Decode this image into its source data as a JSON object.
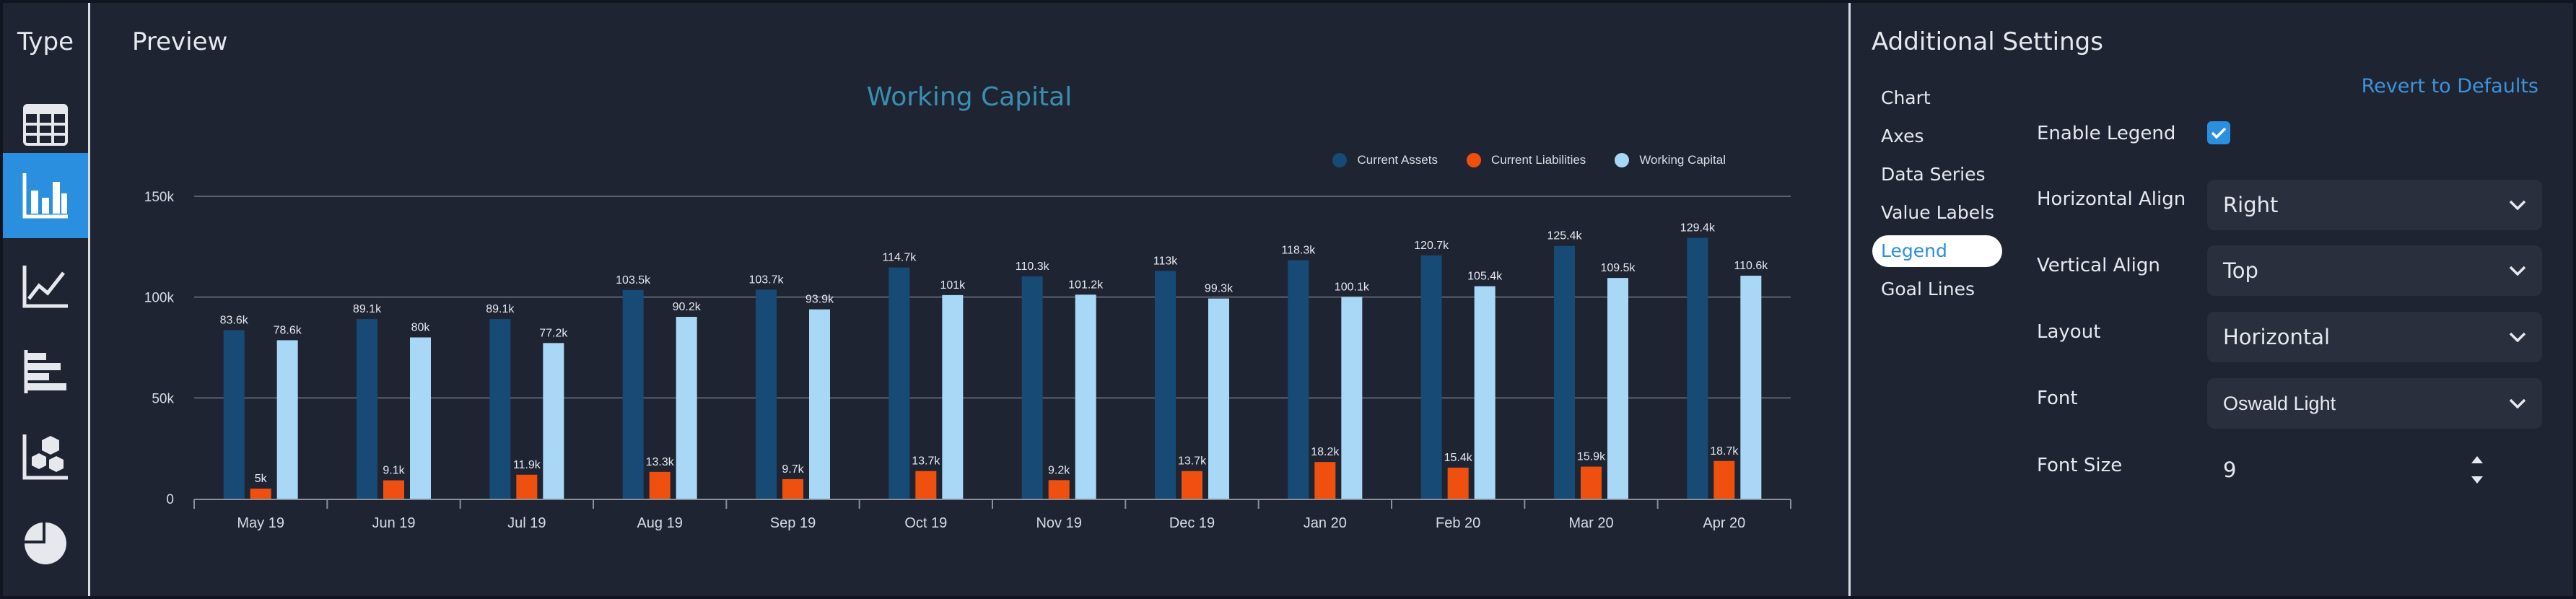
{
  "rail": {
    "title": "Type",
    "buttons": [
      {
        "icon": "table-icon",
        "active": false
      },
      {
        "icon": "bar-chart-icon",
        "active": true
      },
      {
        "icon": "line-chart-icon",
        "active": false
      },
      {
        "icon": "horizontal-bar-icon",
        "active": false
      },
      {
        "icon": "scatter-chart-icon",
        "active": false
      },
      {
        "icon": "pie-chart-icon",
        "active": false
      }
    ]
  },
  "preview": {
    "title": "Preview"
  },
  "chart_data": {
    "type": "bar",
    "title": "Working Capital",
    "xlabel": "",
    "ylabel": "",
    "categories": [
      "May 19",
      "Jun 19",
      "Jul 19",
      "Aug 19",
      "Sep 19",
      "Oct 19",
      "Nov 19",
      "Dec 19",
      "Jan 20",
      "Feb 20",
      "Mar 20",
      "Apr 20"
    ],
    "series": [
      {
        "name": "Current Assets",
        "color": "#174a75",
        "values": [
          83.6,
          89.1,
          89.1,
          103.5,
          103.7,
          114.7,
          110.3,
          113,
          118.3,
          120.7,
          125.4,
          129.4
        ],
        "labels": [
          "83.6k",
          "89.1k",
          "89.1k",
          "103.5k",
          "103.7k",
          "114.7k",
          "110.3k",
          "113k",
          "118.3k",
          "120.7k",
          "125.4k",
          "129.4k"
        ]
      },
      {
        "name": "Current Liabilities",
        "color": "#f0500f",
        "values": [
          5,
          9.1,
          11.9,
          13.3,
          9.7,
          13.7,
          9.2,
          13.7,
          18.2,
          15.4,
          15.9,
          18.7
        ],
        "labels": [
          "5k",
          "9.1k",
          "11.9k",
          "13.3k",
          "9.7k",
          "13.7k",
          "9.2k",
          "13.7k",
          "18.2k",
          "15.4k",
          "15.9k",
          "18.7k"
        ]
      },
      {
        "name": "Working Capital",
        "color": "#a9d8f7",
        "values": [
          78.6,
          80,
          77.2,
          90.2,
          93.9,
          101,
          101.2,
          99.3,
          100.1,
          105.4,
          109.5,
          110.6
        ],
        "labels": [
          "78.6k",
          "80k",
          "77.2k",
          "90.2k",
          "93.9k",
          "101k",
          "101.2k",
          "99.3k",
          "100.1k",
          "105.4k",
          "109.5k",
          "110.6k"
        ]
      }
    ],
    "yticks": [
      "0",
      "50k",
      "100k",
      "150k"
    ],
    "ylim": [
      0,
      150
    ],
    "grid": true,
    "legend_position": "top-right",
    "colors": {
      "title": "#3a8fb0",
      "grid": "#5a606e",
      "axis": "#8a8f9a",
      "tick_text": "#d8dbe2",
      "label_text": "#e6e8ee"
    }
  },
  "settings": {
    "title": "Additional Settings",
    "revert_label": "Revert to Defaults",
    "nav": [
      {
        "label": "Chart",
        "active": false
      },
      {
        "label": "Axes",
        "active": false
      },
      {
        "label": "Data Series",
        "active": false
      },
      {
        "label": "Value Labels",
        "active": false
      },
      {
        "label": "Legend",
        "active": true
      },
      {
        "label": "Goal Lines",
        "active": false
      }
    ],
    "enable_legend": {
      "label": "Enable Legend",
      "checked": true
    },
    "horizontal_align": {
      "label": "Horizontal Align",
      "value": "Right"
    },
    "vertical_align": {
      "label": "Vertical Align",
      "value": "Top"
    },
    "layout": {
      "label": "Layout",
      "value": "Horizontal"
    },
    "font": {
      "label": "Font",
      "value": "Oswald Light"
    },
    "font_size": {
      "label": "Font Size",
      "value": "9"
    }
  },
  "theme": {
    "accent": "#2b8fe0",
    "background": "#1f2433",
    "link": "#3e93d8"
  }
}
